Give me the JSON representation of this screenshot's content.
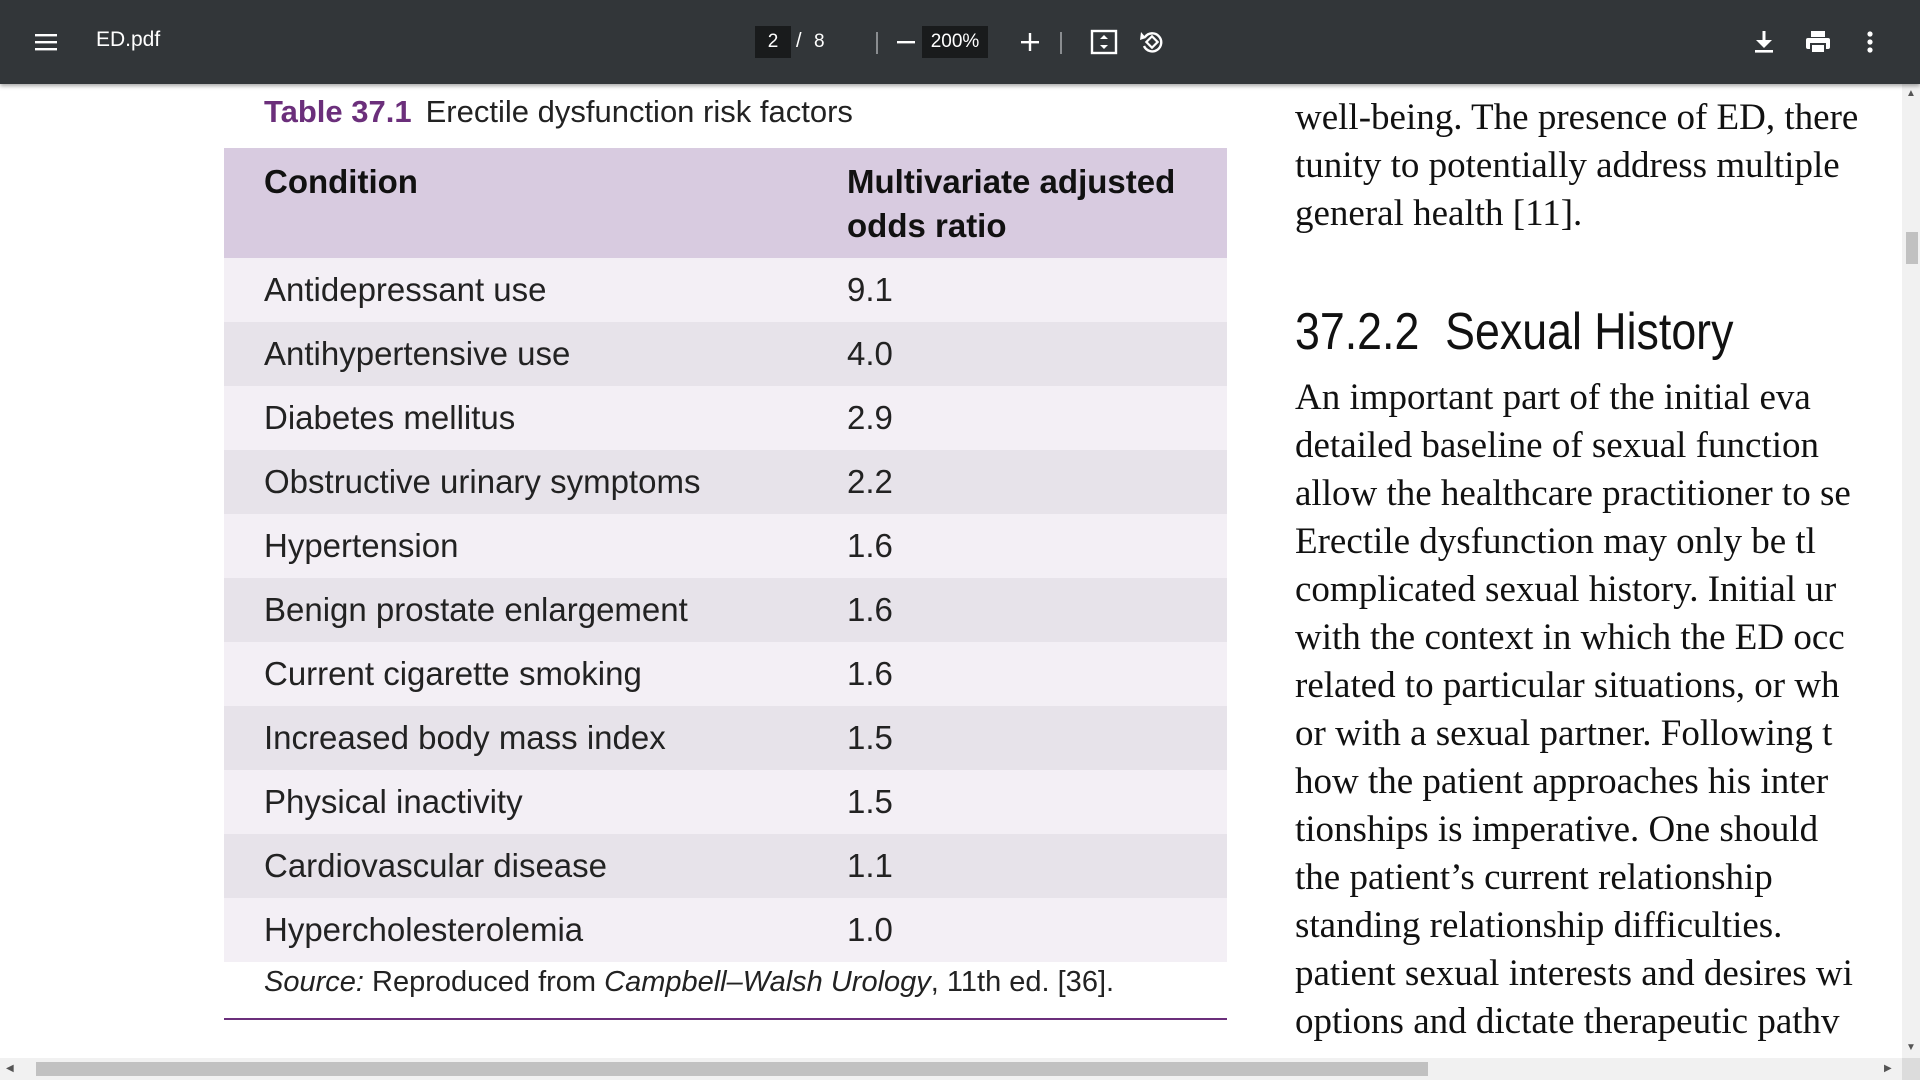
{
  "toolbar": {
    "filename": "ED.pdf",
    "page_current": "2",
    "page_separator": "/",
    "page_total": "8",
    "zoom": "200%",
    "icons": [
      "menu-icon",
      "zoom-out-icon",
      "zoom-in-icon",
      "fit-page-icon",
      "rotate-icon",
      "download-icon",
      "print-icon",
      "more-options-icon"
    ]
  },
  "table": {
    "caption_number": "Table 37.1",
    "caption_text": "Erectile dysfunction risk factors",
    "header_condition": "Condition",
    "header_ratio_line1": "Multivariate adjusted",
    "header_ratio_line2": "odds ratio",
    "rows": [
      {
        "condition": "Antidepressant use",
        "ratio": "9.1"
      },
      {
        "condition": "Antihypertensive use",
        "ratio": "4.0"
      },
      {
        "condition": "Diabetes mellitus",
        "ratio": "2.9"
      },
      {
        "condition": "Obstructive urinary symptoms",
        "ratio": "2.2"
      },
      {
        "condition": "Hypertension",
        "ratio": "1.6"
      },
      {
        "condition": "Benign prostate enlargement",
        "ratio": "1.6"
      },
      {
        "condition": "Current cigarette smoking",
        "ratio": "1.6"
      },
      {
        "condition": "Increased body mass index",
        "ratio": "1.5"
      },
      {
        "condition": "Physical inactivity",
        "ratio": "1.5"
      },
      {
        "condition": "Cardiovascular disease",
        "ratio": "1.1"
      },
      {
        "condition": "Hypercholesterolemia",
        "ratio": "1.0"
      }
    ],
    "source_label": "Source:",
    "source_pre": " Reproduced from ",
    "source_book": "Campbell–Walsh Urology",
    "source_post": ", 11th ed. [36]."
  },
  "article": {
    "top_lines": [
      "well-being. The presence of ED, there",
      "tunity to potentially address multiple",
      "general health [11]."
    ],
    "section_number": "37.2.2",
    "section_title": "Sexual History",
    "body_lines": [
      "An important part of the initial eva",
      "detailed baseline of sexual function",
      "allow the healthcare practitioner to se",
      "Erectile dysfunction may only be tl",
      "complicated sexual history. Initial ur",
      "with the context in which the ED occ",
      "related to particular situations, or wh",
      "or with a sexual partner. Following t",
      "how the patient approaches his inter",
      "tionships is imperative. One should",
      "the patient’s current relationship",
      "standing relationship difficulties.",
      "patient sexual interests and desires wi",
      "options and dictate therapeutic pathv"
    ]
  },
  "colors": {
    "toolbar_bg": "#323639",
    "accent_purple": "#6b2f7b",
    "table_header_bg": "#d8cbe0",
    "row_light": "#f3eff5",
    "row_dark": "#e7e3ea"
  }
}
